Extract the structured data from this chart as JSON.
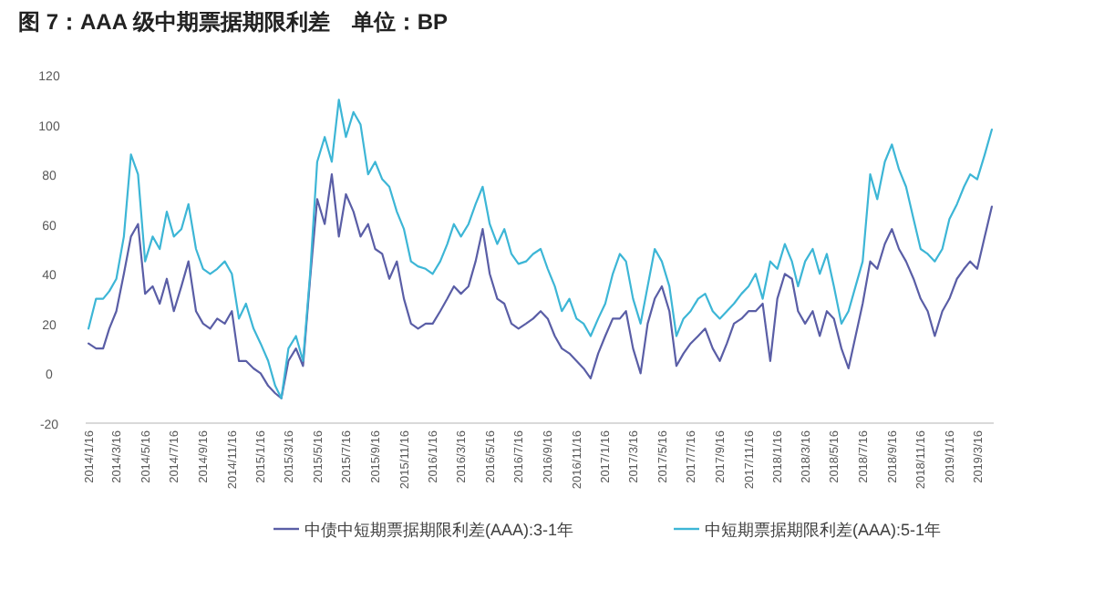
{
  "chart_data": {
    "type": "line",
    "title": "图 7：AAA 级中期票据期限利差　单位：BP",
    "x": [
      "2014-01-16",
      "2014-02-01",
      "2014-02-16",
      "2014-03-01",
      "2014-03-16",
      "2014-04-01",
      "2014-04-16",
      "2014-05-01",
      "2014-05-16",
      "2014-06-01",
      "2014-06-16",
      "2014-07-01",
      "2014-07-16",
      "2014-08-01",
      "2014-08-16",
      "2014-09-01",
      "2014-09-16",
      "2014-10-01",
      "2014-10-16",
      "2014-11-01",
      "2014-11-16",
      "2014-12-01",
      "2014-12-16",
      "2015-01-01",
      "2015-01-16",
      "2015-02-01",
      "2015-02-16",
      "2015-03-01",
      "2015-03-16",
      "2015-04-01",
      "2015-04-16",
      "2015-05-01",
      "2015-05-16",
      "2015-06-01",
      "2015-06-16",
      "2015-07-01",
      "2015-07-16",
      "2015-08-01",
      "2015-08-16",
      "2015-09-01",
      "2015-09-16",
      "2015-10-01",
      "2015-10-16",
      "2015-11-01",
      "2015-11-16",
      "2015-12-01",
      "2015-12-16",
      "2016-01-01",
      "2016-01-16",
      "2016-02-01",
      "2016-02-16",
      "2016-03-01",
      "2016-03-16",
      "2016-04-01",
      "2016-04-16",
      "2016-05-01",
      "2016-05-16",
      "2016-06-01",
      "2016-06-16",
      "2016-07-01",
      "2016-07-16",
      "2016-08-01",
      "2016-08-16",
      "2016-09-01",
      "2016-09-16",
      "2016-10-01",
      "2016-10-16",
      "2016-11-01",
      "2016-11-16",
      "2016-12-01",
      "2016-12-16",
      "2017-01-01",
      "2017-01-16",
      "2017-02-01",
      "2017-02-16",
      "2017-03-01",
      "2017-03-16",
      "2017-04-01",
      "2017-04-16",
      "2017-05-01",
      "2017-05-16",
      "2017-06-01",
      "2017-06-16",
      "2017-07-01",
      "2017-07-16",
      "2017-08-01",
      "2017-08-16",
      "2017-09-01",
      "2017-09-16",
      "2017-10-01",
      "2017-10-16",
      "2017-11-01",
      "2017-11-16",
      "2017-12-01",
      "2017-12-16",
      "2018-01-01",
      "2018-01-16",
      "2018-02-01",
      "2018-02-16",
      "2018-03-01",
      "2018-03-16",
      "2018-04-01",
      "2018-04-16",
      "2018-05-01",
      "2018-05-16",
      "2018-06-01",
      "2018-06-16",
      "2018-07-01",
      "2018-07-16",
      "2018-08-01",
      "2018-08-16",
      "2018-09-01",
      "2018-09-16",
      "2018-10-01",
      "2018-10-16",
      "2018-11-01",
      "2018-11-16",
      "2018-12-01",
      "2018-12-16",
      "2019-01-01",
      "2019-01-16",
      "2019-02-01",
      "2019-02-16",
      "2019-03-01",
      "2019-03-16",
      "2019-04-01",
      "2019-04-16"
    ],
    "series": [
      {
        "name": "中债中短期票据期限利差(AAA):3-1年",
        "color": "#5a5ea6",
        "values": [
          12,
          10,
          10,
          18,
          25,
          40,
          55,
          60,
          32,
          35,
          28,
          38,
          25,
          35,
          45,
          25,
          20,
          18,
          22,
          20,
          25,
          5,
          5,
          2,
          0,
          -5,
          -8,
          -10,
          5,
          10,
          3,
          38,
          70,
          60,
          80,
          55,
          72,
          65,
          55,
          60,
          50,
          48,
          38,
          45,
          30,
          20,
          18,
          20,
          20,
          25,
          30,
          35,
          32,
          35,
          45,
          58,
          40,
          30,
          28,
          20,
          18,
          20,
          22,
          25,
          22,
          15,
          10,
          8,
          5,
          2,
          -2,
          8,
          15,
          22,
          22,
          25,
          10,
          0,
          20,
          30,
          35,
          25,
          3,
          8,
          12,
          15,
          18,
          10,
          5,
          12,
          20,
          22,
          25,
          25,
          28,
          5,
          30,
          40,
          38,
          25,
          20,
          25,
          15,
          25,
          22,
          10,
          2,
          15,
          28,
          45,
          42,
          52,
          58,
          50,
          45,
          38,
          30,
          25,
          15,
          25,
          30,
          38,
          42,
          45,
          42,
          55,
          67
        ]
      },
      {
        "name": "中短期票据期限利差(AAA):5-1年",
        "color": "#3db6d6",
        "values": [
          18,
          30,
          30,
          33,
          38,
          55,
          88,
          80,
          45,
          55,
          50,
          65,
          55,
          58,
          68,
          50,
          42,
          40,
          42,
          45,
          40,
          22,
          28,
          18,
          12,
          5,
          -5,
          -10,
          10,
          15,
          5,
          40,
          85,
          95,
          85,
          110,
          95,
          105,
          100,
          80,
          85,
          78,
          75,
          65,
          58,
          45,
          43,
          42,
          40,
          45,
          52,
          60,
          55,
          60,
          68,
          75,
          60,
          52,
          58,
          48,
          44,
          45,
          48,
          50,
          42,
          35,
          25,
          30,
          22,
          20,
          15,
          22,
          28,
          40,
          48,
          45,
          30,
          20,
          35,
          50,
          45,
          35,
          15,
          22,
          25,
          30,
          32,
          25,
          22,
          25,
          28,
          32,
          35,
          40,
          30,
          45,
          42,
          52,
          45,
          35,
          45,
          50,
          40,
          48,
          35,
          20,
          25,
          35,
          45,
          80,
          70,
          85,
          92,
          82,
          75,
          62,
          50,
          48,
          45,
          50,
          62,
          68,
          75,
          80,
          78,
          88,
          98
        ]
      }
    ],
    "xlim": [
      "2014-01-10",
      "2019-04-20"
    ],
    "xticks": [
      {
        "value": "2014-01-16",
        "label": "2014/1/16"
      },
      {
        "value": "2014-03-16",
        "label": "2014/3/16"
      },
      {
        "value": "2014-05-16",
        "label": "2014/5/16"
      },
      {
        "value": "2014-07-16",
        "label": "2014/7/16"
      },
      {
        "value": "2014-09-16",
        "label": "2014/9/16"
      },
      {
        "value": "2014-11-16",
        "label": "2014/11/16"
      },
      {
        "value": "2015-01-16",
        "label": "2015/1/16"
      },
      {
        "value": "2015-03-16",
        "label": "2015/3/16"
      },
      {
        "value": "2015-05-16",
        "label": "2015/5/16"
      },
      {
        "value": "2015-07-16",
        "label": "2015/7/16"
      },
      {
        "value": "2015-09-16",
        "label": "2015/9/16"
      },
      {
        "value": "2015-11-16",
        "label": "2015/11/16"
      },
      {
        "value": "2016-01-16",
        "label": "2016/1/16"
      },
      {
        "value": "2016-03-16",
        "label": "2016/3/16"
      },
      {
        "value": "2016-05-16",
        "label": "2016/5/16"
      },
      {
        "value": "2016-07-16",
        "label": "2016/7/16"
      },
      {
        "value": "2016-09-16",
        "label": "2016/9/16"
      },
      {
        "value": "2016-11-16",
        "label": "2016/11/16"
      },
      {
        "value": "2017-01-16",
        "label": "2017/1/16"
      },
      {
        "value": "2017-03-16",
        "label": "2017/3/16"
      },
      {
        "value": "2017-05-16",
        "label": "2017/5/16"
      },
      {
        "value": "2017-07-16",
        "label": "2017/7/16"
      },
      {
        "value": "2017-09-16",
        "label": "2017/9/16"
      },
      {
        "value": "2017-11-16",
        "label": "2017/11/16"
      },
      {
        "value": "2018-01-16",
        "label": "2018/1/16"
      },
      {
        "value": "2018-03-16",
        "label": "2018/3/16"
      },
      {
        "value": "2018-05-16",
        "label": "2018/5/16"
      },
      {
        "value": "2018-07-16",
        "label": "2018/7/16"
      },
      {
        "value": "2018-09-16",
        "label": "2018/9/16"
      },
      {
        "value": "2018-11-16",
        "label": "2018/11/16"
      },
      {
        "value": "2019-01-16",
        "label": "2019/1/16"
      },
      {
        "value": "2019-03-16",
        "label": "2019/3/16"
      }
    ],
    "ylim": [
      -20,
      120
    ],
    "yticks": [
      -20,
      0,
      20,
      40,
      60,
      80,
      100,
      120
    ],
    "grid": false,
    "legend": "bottom",
    "marker": "none",
    "line_style": "solid"
  }
}
